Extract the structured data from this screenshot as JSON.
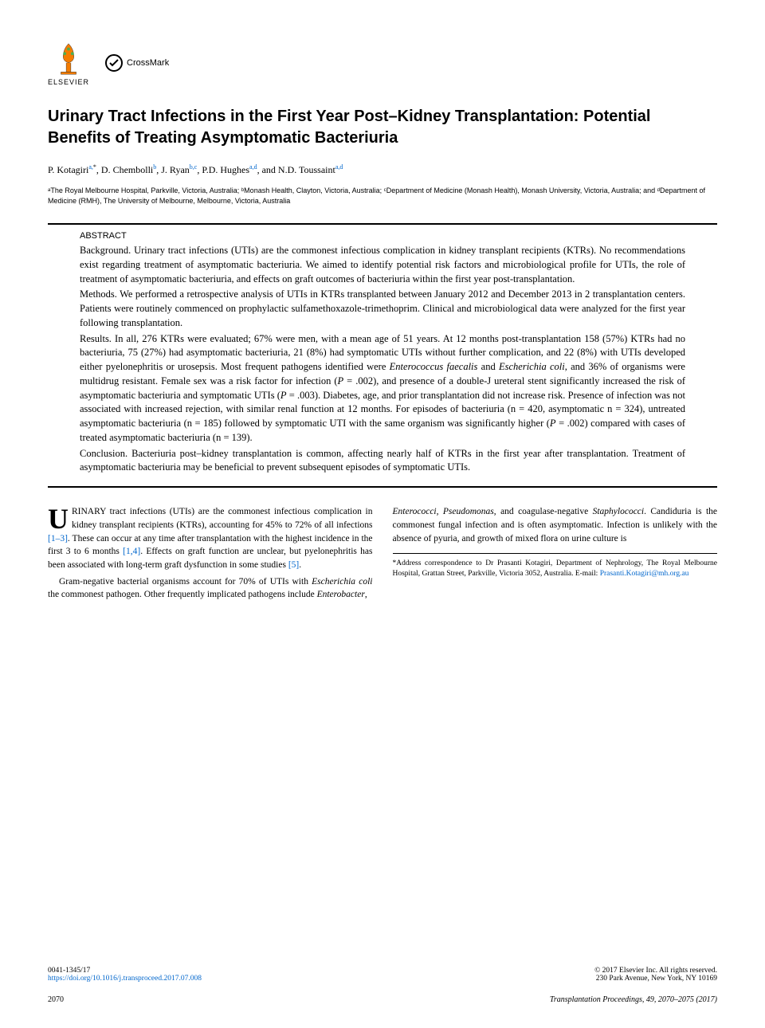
{
  "logos": {
    "elsevier": "ELSEVIER",
    "crossmark": "CrossMark"
  },
  "title": "Urinary Tract Infections in the First Year Post–Kidney Transplantation: Potential Benefits of Treating Asymptomatic Bacteriuria",
  "authors_html": "P. Kotagiri<sup class=\"link\">a,</sup><sup>*</sup>, D. Chembolli<sup class=\"link\">b</sup>, J. Ryan<sup class=\"link\">b,c</sup>, P.D. Hughes<sup class=\"link\">a,d</sup>, and N.D. Toussaint<sup class=\"link\">a,d</sup>",
  "affiliations": "ᵃThe Royal Melbourne Hospital, Parkville, Victoria, Australia; ᵇMonash Health, Clayton, Victoria, Australia; ᶜDepartment of Medicine (Monash Health), Monash University, Victoria, Australia; and ᵈDepartment of Medicine (RMH), The University of Melbourne, Melbourne, Victoria, Australia",
  "abstract": {
    "label": "ABSTRACT",
    "background": "Background.  Urinary tract infections (UTIs) are the commonest infectious complication in kidney transplant recipients (KTRs). No recommendations exist regarding treatment of asymptomatic bacteriuria. We aimed to identify potential risk factors and microbiological profile for UTIs, the role of treatment of asymptomatic bacteriuria, and effects on graft outcomes of bacteriuria within the first year post-transplantation.",
    "methods": "Methods.  We performed a retrospective analysis of UTIs in KTRs transplanted between January 2012 and December 2013 in 2 transplantation centers. Patients were routinely commenced on prophylactic sulfamethoxazole-trimethoprim. Clinical and microbiological data were analyzed for the first year following transplantation.",
    "results_html": "Results.  In all, 276 KTRs were evaluated; 67% were men, with a mean age of 51 years. At 12 months post-transplantation 158 (57%) KTRs had no bacteriuria, 75 (27%) had asymptomatic bacteriuria, 21 (8%) had symptomatic UTIs without further complication, and 22 (8%) with UTIs developed either pyelonephritis or urosepsis. Most frequent pathogens identified were <em>Enterococcus faecalis</em> and <em>Escherichia coli</em>, and 36% of organisms were multidrug resistant. Female sex was a risk factor for infection (<em>P</em> = .002), and presence of a double-J ureteral stent significantly increased the risk of asymptomatic bacteriuria and symptomatic UTIs (<em>P</em> = .003). Diabetes, age, and prior transplantation did not increase risk. Presence of infection was not associated with increased rejection, with similar renal function at 12 months. For episodes of bacteriuria (n = 420, asymptomatic n = 324), untreated asymptomatic bacteriuria (n = 185) followed by symptomatic UTI with the same organism was significantly higher (<em>P</em> = .002) compared with cases of treated asymptomatic bacteriuria (n = 139).",
    "conclusion": "Conclusion.  Bacteriuria post–kidney transplantation is common, affecting nearly half of KTRs in the first year after transplantation. Treatment of asymptomatic bacteriuria may be beneficial to prevent subsequent episodes of symptomatic UTIs."
  },
  "body": {
    "col1_p1_html": "RINARY tract infections (UTIs) are the commonest infectious complication in kidney transplant recipients (KTRs), accounting for 45% to 72% of all infections <span class=\"link\">[1–3]</span>. These can occur at any time after transplantation with the highest incidence in the first 3 to 6 months <span class=\"link\">[1,4]</span>. Effects on graft function are unclear, but pyelonephritis has been associated with long-term graft dysfunction in some studies <span class=\"link\">[5]</span>.",
    "col1_p2_html": "Gram-negative bacterial organisms account for 70% of UTIs with <em>Escherichia coli</em> the commonest pathogen. Other frequently implicated pathogens include <em>Enterobacter</em>,",
    "col2_p1_html": "<em>Enterococci, Pseudomonas</em>, and coagulase-negative <em>Staphylococci</em>. Candiduria is the commonest fungal infection and is often asymptomatic. Infection is unlikely with the absence of pyuria, and growth of mixed flora on urine culture is",
    "correspondence_html": "*Address correspondence to Dr Prasanti Kotagiri, Department of Nephrology, The Royal Melbourne Hospital, Grattan Street, Parkville, Victoria 3052, Australia. E-mail: <span class=\"link\">Prasanti.Kotagiri@mh.org.au</span>"
  },
  "footer": {
    "issn": "0041-1345/17",
    "doi": "https://doi.org/10.1016/j.transproceed.2017.07.008",
    "copyright": "© 2017 Elsevier Inc. All rights reserved.",
    "address": "230 Park Avenue, New York, NY 10169",
    "page": "2070",
    "journal": "Transplantation Proceedings, 49, 2070–2075 (2017)"
  }
}
